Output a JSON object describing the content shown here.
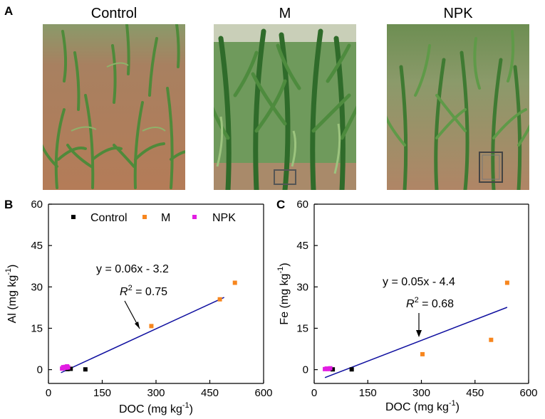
{
  "panels": {
    "a": "A",
    "b": "B",
    "c": "C"
  },
  "photos": [
    {
      "title": "Control",
      "description": "Maize field plot with sparse, short plants and visible reddish bare soil"
    },
    {
      "title": "M",
      "description": "Maize field plot with dense, tall, dark green plants"
    },
    {
      "title": "NPK",
      "description": "Maize field plot with moderately dense plants and a sampling frame on the soil"
    }
  ],
  "colors": {
    "control": "#000000",
    "m": "#f7861e",
    "npk": "#e21de2",
    "fit": "#1010a0",
    "soil": "#b07a55",
    "leaf": "#3f7a32"
  },
  "chart_data": [
    {
      "type": "scatter",
      "title": "",
      "xlabel": "DOC (mg kg",
      "xlabel_sup": "-1",
      "xlabel_end": ")",
      "ylabel": "Al (mg kg",
      "ylabel_sup": "-1",
      "ylabel_end": ")",
      "xlim": [
        0,
        600
      ],
      "ylim": [
        -5,
        60
      ],
      "xticks": [
        0,
        150,
        300,
        450,
        600
      ],
      "yticks": [
        0,
        15,
        30,
        45,
        60
      ],
      "legend": [
        {
          "name": "Control",
          "color": "#000000"
        },
        {
          "name": "M",
          "color": "#f7861e"
        },
        {
          "name": "NPK",
          "color": "#e21de2"
        }
      ],
      "series": [
        {
          "name": "Control",
          "color": "#000000",
          "x": [
            53,
            62,
            103
          ],
          "y": [
            0.2,
            0.3,
            0.1
          ]
        },
        {
          "name": "M",
          "color": "#f7861e",
          "x": [
            287,
            478,
            520
          ],
          "y": [
            15.8,
            25.5,
            31.5
          ]
        },
        {
          "name": "NPK",
          "color": "#e21de2",
          "x": [
            38,
            41,
            44,
            47,
            50,
            52,
            55
          ],
          "y": [
            0.4,
            0.9,
            0.6,
            1.0,
            0.7,
            1.2,
            0.8
          ]
        }
      ],
      "fit": {
        "slope": 0.06,
        "intercept": -3.2,
        "x_range": [
          35,
          490
        ]
      },
      "equation": "y = 0.06x - 3.2",
      "r2_label": "R",
      "r2_sup": "2",
      "r2_value": " = 0.75"
    },
    {
      "type": "scatter",
      "title": "",
      "xlabel": "DOC (mg kg",
      "xlabel_sup": "-1",
      "xlabel_end": ")",
      "ylabel": "Fe (mg kg",
      "ylabel_sup": "-1",
      "ylabel_end": ")",
      "xlim": [
        0,
        600
      ],
      "ylim": [
        -5,
        60
      ],
      "xticks": [
        0,
        150,
        300,
        450,
        600
      ],
      "yticks": [
        0,
        15,
        30,
        45,
        60
      ],
      "series": [
        {
          "name": "Control",
          "color": "#000000",
          "x": [
            52,
            105
          ],
          "y": [
            0.1,
            0.1
          ]
        },
        {
          "name": "M",
          "color": "#f7861e",
          "x": [
            303,
            495,
            540
          ],
          "y": [
            5.6,
            10.8,
            31.5
          ]
        },
        {
          "name": "NPK",
          "color": "#e21de2",
          "x": [
            30,
            35,
            40,
            45
          ],
          "y": [
            0.2,
            0.4,
            0.2,
            0.5
          ]
        }
      ],
      "fit": {
        "slope": 0.05,
        "intercept": -4.4,
        "x_range": [
          30,
          540
        ]
      },
      "equation": "y = 0.05x - 4.4",
      "r2_label": "R",
      "r2_sup": "2",
      "r2_value": " = 0.68"
    }
  ]
}
